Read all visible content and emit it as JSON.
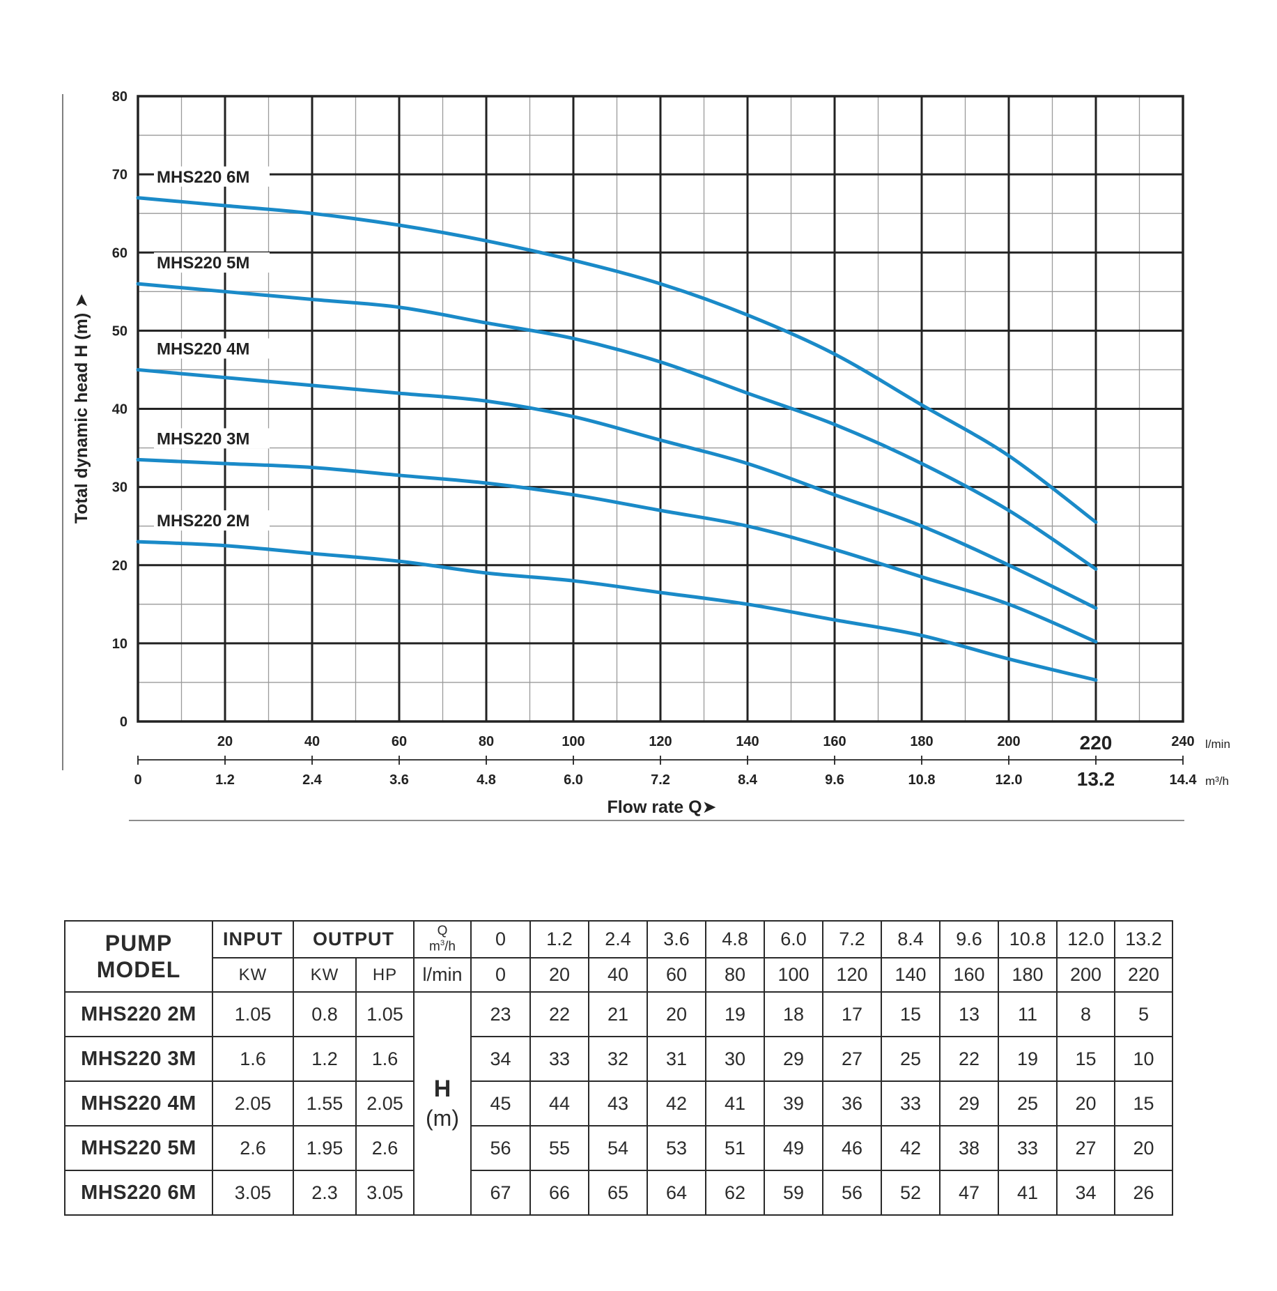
{
  "chart_data": {
    "type": "line",
    "ylabel": "Total dynamic head H (m)",
    "xlabel": "Flow rate Q",
    "ylim": [
      0,
      80
    ],
    "yticks": [
      "0",
      "10",
      "20",
      "30",
      "40",
      "50",
      "60",
      "70",
      "80"
    ],
    "xlim": [
      0,
      240
    ],
    "x_primary_unit": "l/min",
    "x_primary_ticks": [
      "20",
      "40",
      "60",
      "80",
      "100",
      "120",
      "140",
      "160",
      "180",
      "200",
      "220",
      "240"
    ],
    "x_secondary_unit": "m³/h",
    "x_secondary_ticks": [
      "0",
      "1.2",
      "2.4",
      "3.6",
      "4.8",
      "6.0",
      "7.2",
      "8.4",
      "9.6",
      "10.8",
      "12.0",
      "13.2",
      "14.4"
    ],
    "emphasized_primary_tick": "220",
    "emphasized_secondary_tick": "13.2",
    "grid": true,
    "x": [
      0,
      20,
      40,
      60,
      80,
      100,
      120,
      140,
      160,
      180,
      200,
      220
    ],
    "series": [
      {
        "name": "MHS220 6M",
        "values": [
          67,
          66,
          65,
          63.5,
          61.5,
          59,
          56,
          52,
          47,
          40.5,
          34,
          25.5
        ]
      },
      {
        "name": "MHS220 5M",
        "values": [
          56,
          55,
          54,
          53,
          51,
          49,
          46,
          42,
          38,
          33,
          27,
          19.5
        ]
      },
      {
        "name": "MHS220 4M",
        "values": [
          45,
          44,
          43,
          42,
          41,
          39,
          36,
          33,
          29,
          25,
          20,
          14.5
        ]
      },
      {
        "name": "MHS220 3M",
        "values": [
          33.5,
          33,
          32.5,
          31.5,
          30.5,
          29,
          27,
          25,
          22,
          18.5,
          15,
          10.2
        ]
      },
      {
        "name": "MHS220 2M",
        "values": [
          23,
          22.5,
          21.5,
          20.5,
          19,
          18,
          16.5,
          15,
          13,
          11,
          8,
          5.3
        ]
      }
    ]
  },
  "table": {
    "header": {
      "pump": "PUMP",
      "model": "MODEL",
      "input": "INPUT",
      "output": "OUTPUT",
      "q_label": "Q",
      "q_unit_base": "m",
      "q_unit_sup": "3",
      "q_unit_tail": "/h",
      "input_unit": "KW",
      "output_kw": "KW",
      "output_hp": "HP",
      "lmin_unit": "l/min",
      "h_symbol": "H",
      "h_unit": "(m)"
    },
    "q_m3h": [
      "0",
      "1.2",
      "2.4",
      "3.6",
      "4.8",
      "6.0",
      "7.2",
      "8.4",
      "9.6",
      "10.8",
      "12.0",
      "13.2"
    ],
    "q_lmin": [
      "0",
      "20",
      "40",
      "60",
      "80",
      "100",
      "120",
      "140",
      "160",
      "180",
      "200",
      "220"
    ],
    "rows": [
      {
        "model": "MHS220 2M",
        "input_kw": "1.05",
        "output_kw": "0.8",
        "output_hp": "1.05",
        "head": [
          "23",
          "22",
          "21",
          "20",
          "19",
          "18",
          "17",
          "15",
          "13",
          "11",
          "8",
          "5"
        ]
      },
      {
        "model": "MHS220 3M",
        "input_kw": "1.6",
        "output_kw": "1.2",
        "output_hp": "1.6",
        "head": [
          "34",
          "33",
          "32",
          "31",
          "30",
          "29",
          "27",
          "25",
          "22",
          "19",
          "15",
          "10"
        ]
      },
      {
        "model": "MHS220 4M",
        "input_kw": "2.05",
        "output_kw": "1.55",
        "output_hp": "2.05",
        "head": [
          "45",
          "44",
          "43",
          "42",
          "41",
          "39",
          "36",
          "33",
          "29",
          "25",
          "20",
          "15"
        ]
      },
      {
        "model": "MHS220 5M",
        "input_kw": "2.6",
        "output_kw": "1.95",
        "output_hp": "2.6",
        "head": [
          "56",
          "55",
          "54",
          "53",
          "51",
          "49",
          "46",
          "42",
          "38",
          "33",
          "27",
          "20"
        ]
      },
      {
        "model": "MHS220 6M",
        "input_kw": "3.05",
        "output_kw": "2.3",
        "output_hp": "3.05",
        "head": [
          "67",
          "66",
          "65",
          "64",
          "62",
          "59",
          "56",
          "52",
          "47",
          "41",
          "34",
          "26"
        ]
      }
    ]
  }
}
